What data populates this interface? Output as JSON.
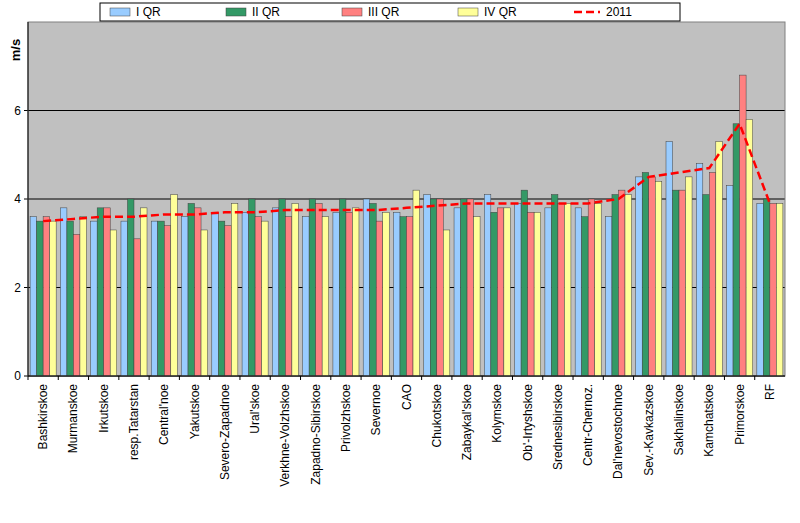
{
  "chart_data": {
    "type": "bar",
    "y_label": "m/s",
    "categories": [
      "Bashkirskoe",
      "Murmanskoe",
      "Irkutskoe",
      "resp.Tatarstan",
      "Central'noe",
      "Yakutskoe",
      "Severo-Zapadnoe",
      "Ural'skoe",
      "Verkhne-Volzhskoe",
      "Zapadno-Sibirskoe",
      "Privolzhskoe",
      "Severnoe",
      "CAO",
      "Chukotskoe",
      "Zabaykal'skoe",
      "Kolymskoe",
      "Ob'-Irtyshskoe",
      "Srednesibirskoe",
      "Centr-Chernoz.",
      "Dal'nevostochnoe",
      "Sev.-Kavkazskoe",
      "Sakhalinskoe",
      "Kamchatskoe",
      "Primorskoe",
      "RF"
    ],
    "series": [
      {
        "name": "I QR",
        "color": "#99ccff",
        "values": [
          3.6,
          3.8,
          3.5,
          3.5,
          3.5,
          3.6,
          3.7,
          3.7,
          3.8,
          3.6,
          3.7,
          4.0,
          3.7,
          4.1,
          3.8,
          4.1,
          3.9,
          3.8,
          3.8,
          3.6,
          4.5,
          5.3,
          4.8,
          4.3,
          3.9
        ]
      },
      {
        "name": "II QR",
        "color": "#339966",
        "values": [
          3.5,
          3.5,
          3.8,
          4.0,
          3.5,
          3.9,
          3.5,
          4.0,
          4.0,
          4.0,
          4.0,
          3.9,
          3.6,
          4.0,
          4.0,
          3.7,
          4.2,
          4.1,
          3.6,
          4.1,
          4.6,
          4.2,
          4.1,
          5.7,
          4.0
        ]
      },
      {
        "name": "III QR",
        "color": "#ff8080",
        "values": [
          3.6,
          3.2,
          3.8,
          3.1,
          3.4,
          3.8,
          3.4,
          3.6,
          3.6,
          3.9,
          3.7,
          3.5,
          3.6,
          4.0,
          4.0,
          3.8,
          3.7,
          3.9,
          4.0,
          4.2,
          4.5,
          4.2,
          4.6,
          6.8,
          3.9
        ]
      },
      {
        "name": "IV QR",
        "color": "#ffff99",
        "values": [
          3.5,
          3.6,
          3.3,
          3.8,
          4.1,
          3.3,
          3.9,
          3.5,
          3.9,
          3.6,
          3.8,
          3.7,
          4.2,
          3.3,
          3.6,
          3.8,
          3.7,
          3.9,
          3.9,
          4.1,
          4.4,
          4.5,
          5.3,
          5.8,
          3.9
        ]
      },
      {
        "name": "2011",
        "color": "#ff0000",
        "type": "line",
        "line_style": "dashed",
        "values": [
          3.5,
          3.55,
          3.6,
          3.6,
          3.65,
          3.65,
          3.7,
          3.7,
          3.75,
          3.75,
          3.75,
          3.75,
          3.8,
          3.85,
          3.9,
          3.9,
          3.9,
          3.9,
          3.9,
          4.0,
          4.5,
          4.6,
          4.7,
          5.7,
          3.9
        ]
      }
    ],
    "ylim": [
      0,
      8
    ],
    "yticks": [
      0,
      2,
      4,
      6
    ],
    "grid": true,
    "legend": "top"
  }
}
